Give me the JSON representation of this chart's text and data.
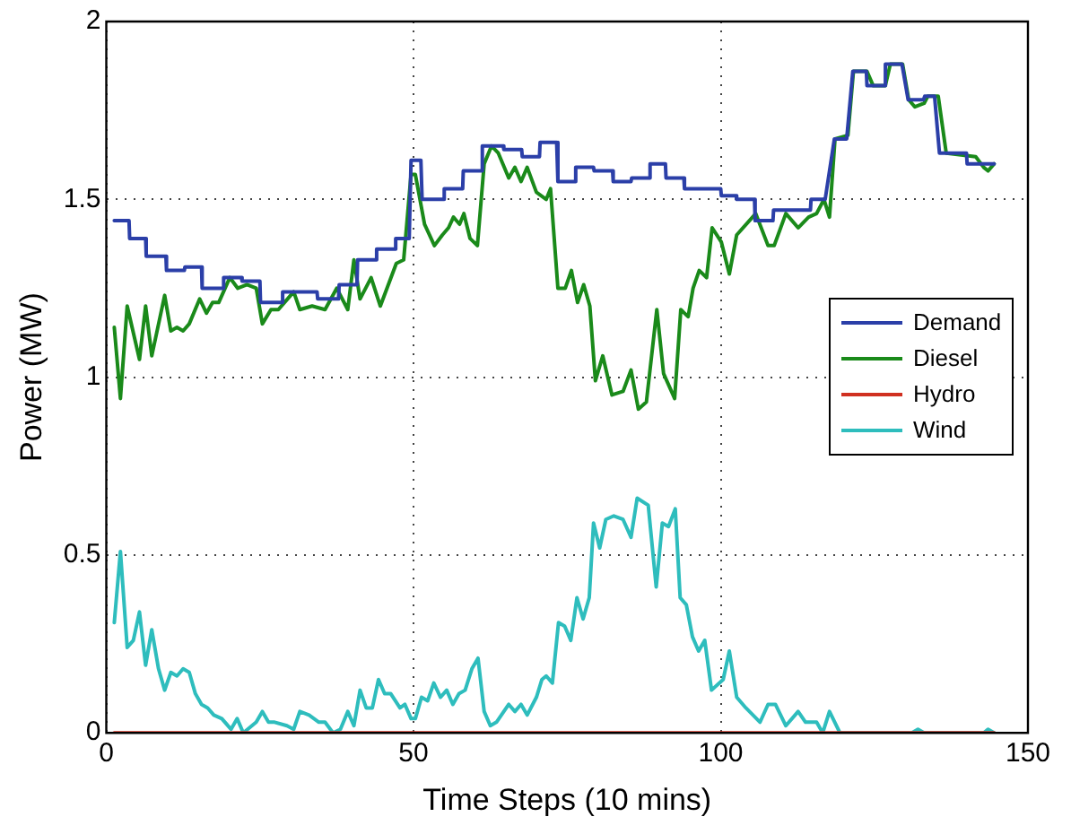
{
  "chart_data": {
    "type": "line",
    "xlabel": "Time Steps (10 mins)",
    "ylabel": "Power (MW)",
    "xlim": [
      0,
      150
    ],
    "xticks": [
      0,
      50,
      100,
      150
    ],
    "ylim": [
      0,
      2
    ],
    "yticks": [
      0,
      0.5,
      1,
      1.5,
      2
    ],
    "grid": true,
    "legend": "right",
    "marker": "none",
    "line_style": "solid",
    "series": [
      {
        "name": "Demand",
        "color": "#2b3fa8",
        "x": [
          1.3,
          3.7,
          3.8,
          6.4,
          6.5,
          9.7,
          9.8,
          12.7,
          12.8,
          15.5,
          15.6,
          19,
          19.1,
          22,
          22.1,
          25,
          25.1,
          28.6,
          28.7,
          34.3,
          34.4,
          37.8,
          37.9,
          40.8,
          40.9,
          43.9,
          44,
          47,
          47.1,
          49.3,
          49.6,
          51.2,
          51.4,
          54.9,
          55,
          58,
          58.1,
          61,
          61.2,
          64.6,
          64.7,
          67.6,
          67.7,
          70.5,
          70.6,
          73.3,
          73.5,
          76.3,
          76.4,
          79.3,
          79.4,
          82.4,
          82.5,
          85.4,
          85.5,
          88.4,
          88.5,
          91,
          91.1,
          94,
          94.1,
          97,
          97.1,
          100,
          100.1,
          102.5,
          102.6,
          105.5,
          105.6,
          108.5,
          108.6,
          111.6,
          111.7,
          114.6,
          114.7,
          117,
          118.5,
          120.5,
          121.5,
          123.7,
          123.8,
          126.7,
          126.8,
          129.5,
          130.5,
          133,
          133.2,
          134.8,
          135.6,
          140,
          140.1,
          142.8,
          144.5
        ],
        "values": [
          1.44,
          1.44,
          1.39,
          1.39,
          1.34,
          1.34,
          1.3,
          1.3,
          1.31,
          1.31,
          1.25,
          1.25,
          1.28,
          1.28,
          1.27,
          1.27,
          1.21,
          1.21,
          1.24,
          1.24,
          1.22,
          1.22,
          1.26,
          1.26,
          1.33,
          1.33,
          1.36,
          1.36,
          1.39,
          1.39,
          1.61,
          1.61,
          1.5,
          1.5,
          1.53,
          1.53,
          1.58,
          1.58,
          1.65,
          1.65,
          1.64,
          1.64,
          1.62,
          1.62,
          1.66,
          1.66,
          1.55,
          1.55,
          1.59,
          1.59,
          1.58,
          1.58,
          1.55,
          1.55,
          1.56,
          1.56,
          1.6,
          1.6,
          1.56,
          1.56,
          1.53,
          1.53,
          1.53,
          1.53,
          1.51,
          1.51,
          1.5,
          1.5,
          1.44,
          1.44,
          1.47,
          1.47,
          1.47,
          1.47,
          1.5,
          1.5,
          1.67,
          1.67,
          1.86,
          1.86,
          1.82,
          1.82,
          1.88,
          1.88,
          1.78,
          1.78,
          1.79,
          1.79,
          1.63,
          1.63,
          1.6,
          1.6,
          1.6
        ]
      },
      {
        "name": "Diesel",
        "color": "#1a8a1a",
        "x": [
          1.3,
          2.3,
          3.4,
          5.4,
          6.4,
          7.4,
          9.5,
          10.5,
          11.5,
          12.5,
          13.5,
          15.2,
          16.3,
          17.3,
          18.3,
          20.1,
          21.4,
          22.9,
          24.4,
          25.4,
          26.8,
          28,
          29.5,
          30.5,
          31.5,
          33.5,
          35.6,
          37.5,
          39.3,
          40.3,
          41.3,
          43.1,
          44.6,
          47.2,
          48.4,
          49.6,
          50.3,
          51.8,
          53.4,
          54.7,
          55.7,
          56.5,
          57.5,
          58.2,
          59.2,
          60.4,
          61.5,
          62.7,
          63.8,
          65.5,
          66.5,
          67.5,
          68.5,
          70,
          71.6,
          72.3,
          73.5,
          74.7,
          75.7,
          76.7,
          77.7,
          78.7,
          79.6,
          80.8,
          82.3,
          84.1,
          85.4,
          86.6,
          87.9,
          89.6,
          90.7,
          92.5,
          93.5,
          94.7,
          95.5,
          96.5,
          97.7,
          98.6,
          100.1,
          101.4,
          102.6,
          105.7,
          107.7,
          108.7,
          110.6,
          112.6,
          114.3,
          115.6,
          116.8,
          117.7,
          118.6,
          120.7,
          121.6,
          123.8,
          124.8,
          126.8,
          127.6,
          129.6,
          130.6,
          131.6,
          133.1,
          133.7,
          135.4,
          136.7,
          141.5,
          142.8,
          143.5,
          144.5
        ],
        "values": [
          1.14,
          0.94,
          1.2,
          1.05,
          1.2,
          1.06,
          1.23,
          1.13,
          1.14,
          1.13,
          1.15,
          1.22,
          1.18,
          1.21,
          1.21,
          1.28,
          1.25,
          1.26,
          1.25,
          1.15,
          1.19,
          1.19,
          1.22,
          1.24,
          1.19,
          1.2,
          1.19,
          1.25,
          1.19,
          1.33,
          1.22,
          1.28,
          1.2,
          1.32,
          1.33,
          1.57,
          1.57,
          1.43,
          1.37,
          1.4,
          1.42,
          1.45,
          1.43,
          1.46,
          1.39,
          1.37,
          1.6,
          1.65,
          1.63,
          1.56,
          1.59,
          1.55,
          1.59,
          1.52,
          1.5,
          1.53,
          1.25,
          1.25,
          1.3,
          1.21,
          1.26,
          1.2,
          0.99,
          1.06,
          0.95,
          0.96,
          1.02,
          0.91,
          0.93,
          1.19,
          1.01,
          0.94,
          1.19,
          1.17,
          1.25,
          1.3,
          1.28,
          1.42,
          1.38,
          1.29,
          1.4,
          1.46,
          1.37,
          1.37,
          1.46,
          1.42,
          1.45,
          1.46,
          1.5,
          1.45,
          1.67,
          1.68,
          1.86,
          1.86,
          1.82,
          1.82,
          1.88,
          1.88,
          1.78,
          1.76,
          1.77,
          1.79,
          1.79,
          1.63,
          1.62,
          1.59,
          1.58,
          1.6
        ]
      },
      {
        "name": "Hydro",
        "color": "#d03020",
        "x": [
          1.3,
          144.5
        ],
        "values": [
          0,
          0
        ]
      },
      {
        "name": "Wind",
        "color": "#2ebdbd",
        "x": [
          1.3,
          2.3,
          3.4,
          4.4,
          5.4,
          6.4,
          7.4,
          8.5,
          9.5,
          10.5,
          11.5,
          12.5,
          13.5,
          14.5,
          15.5,
          16.5,
          17.5,
          18.8,
          20.3,
          21.3,
          22.3,
          24.4,
          25.4,
          26.4,
          27.4,
          29.4,
          30.5,
          31.5,
          33,
          34.6,
          35.6,
          36.9,
          38.1,
          39.3,
          40.3,
          41.3,
          42.3,
          43.3,
          44.3,
          45.3,
          46.3,
          47.8,
          48.6,
          49.6,
          50.3,
          51.3,
          52.3,
          53.3,
          54.4,
          55.4,
          56.4,
          57.4,
          58.4,
          59.5,
          60.5,
          61.5,
          62.5,
          63.5,
          65.5,
          66.5,
          67.5,
          68.5,
          70,
          70.9,
          71.6,
          72.6,
          73.6,
          74.6,
          75.6,
          76.6,
          77.6,
          78.6,
          79.3,
          80.3,
          81.3,
          82.6,
          84.1,
          85.4,
          86.4,
          88.2,
          89.5,
          90.5,
          91.5,
          92.6,
          93.4,
          94.4,
          95.4,
          96.4,
          97.4,
          98.5,
          100.4,
          101.4,
          102.6,
          104.1,
          106.4,
          107.7,
          108.9,
          110.6,
          112.6,
          113.8,
          115.6,
          116.6,
          117.7,
          119.4,
          131.1,
          132.1,
          133.1,
          142.8,
          143.5,
          144.5
        ],
        "values": [
          0.31,
          0.51,
          0.24,
          0.26,
          0.34,
          0.19,
          0.29,
          0.18,
          0.12,
          0.17,
          0.16,
          0.18,
          0.17,
          0.11,
          0.08,
          0.07,
          0.05,
          0.04,
          0.01,
          0.04,
          0,
          0.03,
          0.06,
          0.03,
          0.03,
          0.02,
          0.01,
          0.06,
          0.05,
          0.03,
          0.03,
          0,
          0.01,
          0.06,
          0.02,
          0.12,
          0.07,
          0.07,
          0.15,
          0.11,
          0.11,
          0.07,
          0.08,
          0.04,
          0.04,
          0.1,
          0.09,
          0.14,
          0.1,
          0.12,
          0.08,
          0.11,
          0.12,
          0.18,
          0.21,
          0.06,
          0.02,
          0.03,
          0.08,
          0.06,
          0.08,
          0.05,
          0.1,
          0.15,
          0.16,
          0.14,
          0.31,
          0.3,
          0.26,
          0.38,
          0.32,
          0.38,
          0.59,
          0.52,
          0.6,
          0.61,
          0.6,
          0.55,
          0.66,
          0.64,
          0.41,
          0.59,
          0.58,
          0.63,
          0.38,
          0.36,
          0.27,
          0.23,
          0.26,
          0.12,
          0.15,
          0.23,
          0.1,
          0.07,
          0.03,
          0.08,
          0.08,
          0.02,
          0.06,
          0.03,
          0.03,
          0,
          0.06,
          0,
          0,
          0.01,
          0,
          0,
          0.01,
          0
        ]
      }
    ]
  }
}
